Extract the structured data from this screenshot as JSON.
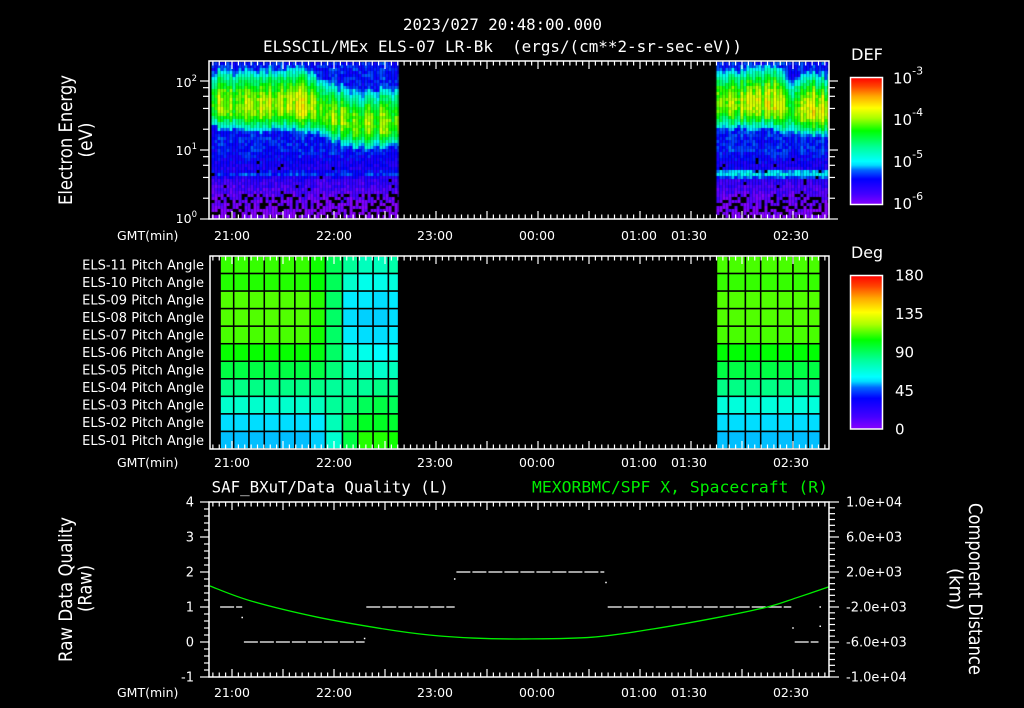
{
  "header": {
    "title_line1": "2023/027 20:48:00.000",
    "title_line2": "ELSSCIL/MEx ELS-07 LR-Bk  (ergs/(cm**2-sr-sec-eV))"
  },
  "panel_spectrogram": {
    "ylabel_line1": "Electron Energy",
    "ylabel_line2": "(eV)",
    "yticks": [
      {
        "base": "10",
        "exp": "2"
      },
      {
        "base": "10",
        "exp": "1"
      },
      {
        "base": "10",
        "exp": "0"
      }
    ],
    "xlabel": "GMT(min)",
    "xticks": [
      "21:00",
      "22:00",
      "23:00",
      "00:00",
      "01:00",
      "01:30",
      "02:30"
    ],
    "colorbar": {
      "label": "DEF",
      "ticks": [
        {
          "base": "10",
          "exp": "-3"
        },
        {
          "base": "10",
          "exp": "-4"
        },
        {
          "base": "10",
          "exp": "-5"
        },
        {
          "base": "10",
          "exp": "-6"
        }
      ]
    }
  },
  "panel_pitch": {
    "row_labels": [
      "ELS-11 Pitch Angle",
      "ELS-10 Pitch Angle",
      "ELS-09 Pitch Angle",
      "ELS-08 Pitch Angle",
      "ELS-07 Pitch Angle",
      "ELS-06 Pitch Angle",
      "ELS-05 Pitch Angle",
      "ELS-04 Pitch Angle",
      "ELS-03 Pitch Angle",
      "ELS-02 Pitch Angle",
      "ELS-01 Pitch Angle"
    ],
    "xlabel": "GMT(min)",
    "xticks": [
      "21:00",
      "22:00",
      "23:00",
      "00:00",
      "01:00",
      "01:30",
      "02:30"
    ],
    "colorbar": {
      "label": "Deg",
      "ticks": [
        "180",
        "135",
        "90",
        "45",
        "0"
      ]
    }
  },
  "panel_quality": {
    "title_left": "SAF_BXuT/Data Quality (L)",
    "title_right": "MEXORBMC/SPF X, Spacecraft (R)",
    "ylabel_left_line1": "Raw Data Quality",
    "ylabel_left_line2": "(Raw)",
    "ylabel_right_line1": "Component Distance",
    "ylabel_right_line2": "(km)",
    "yticks_left": [
      "4",
      "3",
      "2",
      "1",
      "0",
      "-1"
    ],
    "yticks_right": [
      "1.0e+04",
      "6.0e+03",
      "2.0e+03",
      "-2.0e+03",
      "-6.0e+03",
      "-1.0e+04"
    ],
    "xlabel": "GMT(min)",
    "xticks": [
      "21:00",
      "22:00",
      "23:00",
      "00:00",
      "01:00",
      "01:30",
      "02:30"
    ]
  },
  "colors": {
    "background": "#000000",
    "foreground": "#ffffff",
    "right_axis_series": "#00ee00"
  },
  "chart_data": [
    {
      "type": "heatmap",
      "subtype": "spectrogram",
      "title": "ELSSCIL/MEx ELS-07 LR-Bk  (ergs/(cm**2-sr-sec-eV))",
      "xlabel": "GMT(min)",
      "ylabel": "Electron Energy (eV)",
      "yscale": "log",
      "ylim": [
        1,
        190
      ],
      "yticks": [
        1,
        10,
        100
      ],
      "xlim": [
        "20:48",
        "02:51"
      ],
      "xticks": [
        "21:00",
        "22:00",
        "23:00",
        "00:00",
        "01:00",
        "01:30",
        "02:30"
      ],
      "colorbar": {
        "label": "DEF",
        "scale": "log",
        "range": [
          1e-06,
          0.001
        ],
        "ticks": [
          0.001,
          0.0001,
          1e-05,
          1e-06
        ],
        "colormap": [
          [
            0,
            "#8800ff"
          ],
          [
            0.08,
            "#4400ff"
          ],
          [
            0.2,
            "#0000ff"
          ],
          [
            0.27,
            "#0066ff"
          ],
          [
            0.31,
            "#00ddff"
          ],
          [
            0.34,
            "#00ffff"
          ],
          [
            0.45,
            "#00ff99"
          ],
          [
            0.58,
            "#00ff00"
          ],
          [
            0.68,
            "#aaff00"
          ],
          [
            0.76,
            "#ffff00"
          ],
          [
            0.85,
            "#ffaa00"
          ],
          [
            0.93,
            "#ff4400"
          ],
          [
            1,
            "#ff0000"
          ]
        ]
      },
      "data_gaps": [
        {
          "start": "22:38",
          "end": "01:45"
        }
      ],
      "segments": [
        {
          "start": "20:48",
          "end": "22:38",
          "profile": [
            {
              "t": "20:48",
              "peak_energy_eV": 45,
              "peak_log_def": -4.05
            },
            {
              "t": "21:15",
              "peak_energy_eV": 42,
              "peak_log_def": -3.95
            },
            {
              "t": "21:35",
              "peak_energy_eV": 45,
              "peak_log_def": -3.85
            },
            {
              "t": "21:48",
              "peak_energy_eV": 40,
              "peak_log_def": -3.9
            },
            {
              "t": "22:00",
              "peak_energy_eV": 28,
              "peak_log_def": -4.1
            },
            {
              "t": "22:15",
              "peak_energy_eV": 22,
              "peak_log_def": -4.1
            },
            {
              "t": "22:38",
              "peak_energy_eV": 25,
              "peak_log_def": -4.05
            }
          ],
          "secondary_band": {
            "energy_eV": 4.5,
            "log_def": -5.3
          }
        },
        {
          "start": "01:45",
          "end": "02:51",
          "profile": [
            {
              "t": "01:45",
              "peak_energy_eV": 45,
              "peak_log_def": -4.1
            },
            {
              "t": "02:05",
              "peak_energy_eV": 45,
              "peak_log_def": -4.0
            },
            {
              "t": "02:18",
              "peak_energy_eV": 48,
              "peak_log_def": -3.85
            },
            {
              "t": "02:30",
              "peak_energy_eV": 35,
              "peak_log_def": -4.25
            },
            {
              "t": "02:40",
              "peak_energy_eV": 38,
              "peak_log_def": -3.8
            },
            {
              "t": "02:51",
              "peak_energy_eV": 35,
              "peak_log_def": -3.9
            }
          ],
          "secondary_band": {
            "energy_eV": 4.5,
            "log_def": -5.0
          }
        }
      ]
    },
    {
      "type": "heatmap",
      "title": "Pitch Angle",
      "xlabel": "GMT(min)",
      "rows": [
        "ELS-11",
        "ELS-10",
        "ELS-09",
        "ELS-08",
        "ELS-07",
        "ELS-06",
        "ELS-05",
        "ELS-04",
        "ELS-03",
        "ELS-02",
        "ELS-01"
      ],
      "colorbar": {
        "label": "Deg",
        "range": [
          0,
          180
        ],
        "ticks": [
          180,
          135,
          90,
          45,
          0
        ]
      },
      "blocks": [
        {
          "column_edges": [
            "20:53",
            "21:01",
            "21:10",
            "21:19",
            "21:28",
            "21:37",
            "21:46",
            "21:55",
            "22:05",
            "22:14",
            "22:23",
            "22:32",
            "22:38"
          ],
          "values_deg": [
            [
              110,
              110,
              110,
              110,
              110,
              110,
              106,
              91,
              81,
              74,
              74,
              78
            ],
            [
              108,
              108,
              108,
              108,
              108,
              108,
              104,
              91,
              71,
              65,
              65,
              68
            ],
            [
              113,
              113,
              113,
              113,
              113,
              113,
              108,
              89,
              58,
              58,
              56,
              58
            ],
            [
              113,
              113,
              113,
              113,
              113,
              113,
              108,
              89,
              56,
              55,
              55,
              56
            ],
            [
              112,
              112,
              112,
              112,
              112,
              112,
              106,
              89,
              58,
              56,
              56,
              58
            ],
            [
              105,
              105,
              105,
              105,
              105,
              105,
              102,
              89,
              68,
              65,
              61,
              65
            ],
            [
              94,
              94,
              94,
              94,
              94,
              94,
              94,
              86,
              74,
              74,
              71,
              74
            ],
            [
              84,
              84,
              84,
              84,
              84,
              84,
              84,
              81,
              81,
              81,
              84,
              84
            ],
            [
              71,
              71,
              71,
              71,
              71,
              71,
              74,
              81,
              84,
              91,
              94,
              91
            ],
            [
              56,
              56,
              56,
              56,
              56,
              56,
              58,
              75,
              91,
              99,
              99,
              97
            ],
            [
              54,
              54,
              54,
              54,
              54,
              54,
              55,
              70,
              94,
              108,
              108,
              106
            ]
          ]
        },
        {
          "column_edges": [
            "01:45",
            "01:52",
            "02:02",
            "02:11",
            "02:21",
            "02:30",
            "02:39",
            "02:46"
          ],
          "values_deg": [
            [
              112,
              112,
              112,
              112,
              112,
              112,
              112
            ],
            [
              110,
              110,
              110,
              110,
              110,
              110,
              110
            ],
            [
              113,
              113,
              113,
              113,
              113,
              113,
              113
            ],
            [
              113,
              113,
              113,
              113,
              113,
              113,
              113
            ],
            [
              112,
              112,
              112,
              112,
              112,
              112,
              112
            ],
            [
              104,
              104,
              104,
              104,
              104,
              104,
              104
            ],
            [
              94,
              94,
              94,
              94,
              94,
              94,
              94
            ],
            [
              84,
              84,
              84,
              84,
              84,
              84,
              84
            ],
            [
              68,
              68,
              68,
              68,
              68,
              68,
              68
            ],
            [
              56,
              56,
              56,
              56,
              56,
              56,
              56
            ],
            [
              54,
              54,
              54,
              54,
              54,
              54,
              54
            ]
          ]
        }
      ]
    },
    {
      "type": "line",
      "title_left": "SAF_BXuT/Data Quality (L)",
      "title_right": "MEXORBMC/SPF X, Spacecraft (R)",
      "xlabel": "GMT(min)",
      "xticks": [
        "21:00",
        "22:00",
        "23:00",
        "00:00",
        "01:00",
        "01:30",
        "02:30"
      ],
      "ylabel_left": "Raw Data Quality (Raw)",
      "ylim_left": [
        -1,
        4
      ],
      "ylabel_right": "Component Distance (km)",
      "ylim_right": [
        -10000,
        10000
      ],
      "series": [
        {
          "name": "Raw Data Quality",
          "axis": "left",
          "color": "#ffffff",
          "style": "dashed",
          "segments": [
            {
              "start": "20:53",
              "end": "21:06",
              "value": 1
            },
            {
              "start": "21:07",
              "end": "22:18",
              "value": 0
            },
            {
              "start": "22:19",
              "end": "23:11",
              "value": 1
            },
            {
              "start": "23:12",
              "end": "00:39",
              "value": 2
            },
            {
              "start": "00:41",
              "end": "02:29",
              "value": 1
            },
            {
              "start": "02:31",
              "end": "02:45",
              "value": 0
            }
          ],
          "transition_points": [
            {
              "t": "21:06",
              "value": 0.7
            },
            {
              "t": "22:18",
              "value": 0.1
            },
            {
              "t": "23:11",
              "value": 1.8
            },
            {
              "t": "00:40",
              "value": 1.7
            },
            {
              "t": "02:30",
              "value": 0.4
            },
            {
              "t": "02:46",
              "value": 0.45
            },
            {
              "t": "02:46",
              "value": 1.0
            }
          ]
        },
        {
          "name": "MEXORBMC/SPF X, Spacecraft",
          "axis": "right",
          "color": "#00ee00",
          "x": [
            "20:47",
            "21:11",
            "21:50",
            "22:29",
            "22:56",
            "23:22",
            "23:52",
            "00:32",
            "01:08",
            "01:47",
            "02:15",
            "02:32",
            "02:51"
          ],
          "values": [
            400,
            -1300,
            -3150,
            -4500,
            -5200,
            -5550,
            -5650,
            -5450,
            -4500,
            -3150,
            -2000,
            -950,
            300
          ]
        }
      ]
    }
  ]
}
